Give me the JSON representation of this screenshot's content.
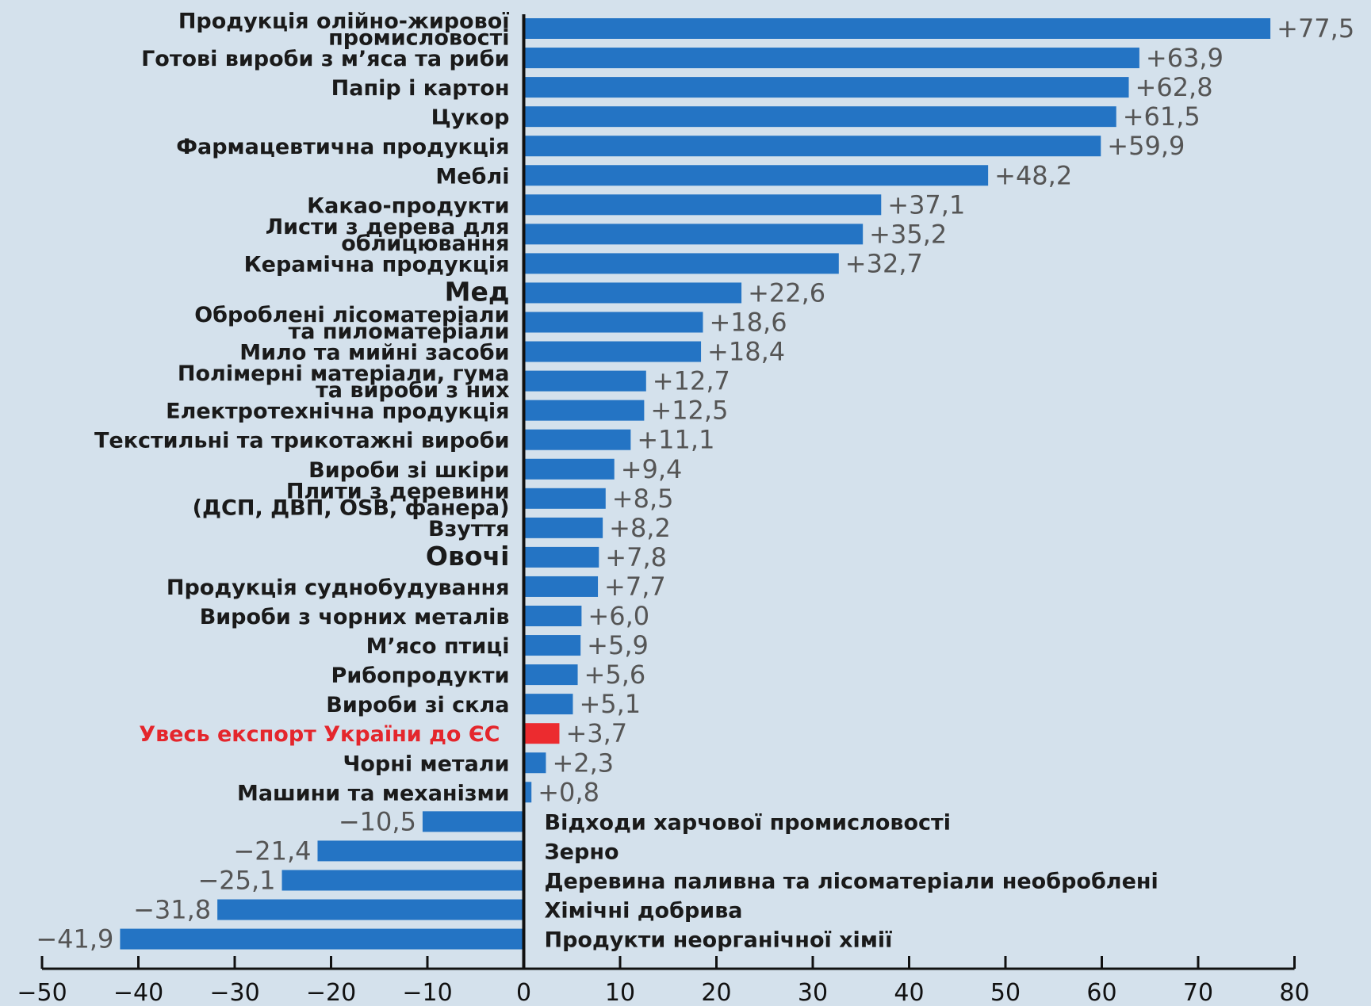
{
  "chart_data": {
    "type": "bar",
    "orientation": "horizontal",
    "title": "",
    "xlabel": "",
    "ylabel": "",
    "xlim": [
      -50,
      80
    ],
    "xticks": [
      "−50",
      "−40",
      "−30",
      "−20",
      "−10",
      "0",
      "10",
      "20",
      "30",
      "40",
      "50",
      "60",
      "70",
      "80"
    ],
    "grid": false,
    "legend": "none",
    "colors": {
      "bar": "#2474c4",
      "highlight": "#ec2b2f",
      "background": "#d4e1ec",
      "axis": "#111111"
    },
    "categories": [
      {
        "lines": [
          "Продукція олійно-жирової",
          "промисловості"
        ],
        "value": 77.5,
        "label": "+77,5"
      },
      {
        "lines": [
          "Готові вироби з м’яса та риби"
        ],
        "value": 63.9,
        "label": "+63,9"
      },
      {
        "lines": [
          "Папір і картон"
        ],
        "value": 62.8,
        "label": "+62,8"
      },
      {
        "lines": [
          "Цукор"
        ],
        "value": 61.5,
        "label": "+61,5"
      },
      {
        "lines": [
          "Фармацевтична продукція"
        ],
        "value": 59.9,
        "label": "+59,9"
      },
      {
        "lines": [
          "Меблі"
        ],
        "value": 48.2,
        "label": "+48,2"
      },
      {
        "lines": [
          "Какао-продукти"
        ],
        "value": 37.1,
        "label": "+37,1"
      },
      {
        "lines": [
          "Листи з дерева для",
          "облицювання"
        ],
        "value": 35.2,
        "label": "+35,2"
      },
      {
        "lines": [
          "Керамічна продукція"
        ],
        "value": 32.7,
        "label": "+32,7"
      },
      {
        "lines": [
          "Мед"
        ],
        "value": 22.6,
        "label": "+22,6",
        "big": true
      },
      {
        "lines": [
          "Оброблені лісоматеріали",
          "та пиломатеріали"
        ],
        "value": 18.6,
        "label": "+18,6"
      },
      {
        "lines": [
          "Мило та мийні засоби"
        ],
        "value": 18.4,
        "label": "+18,4"
      },
      {
        "lines": [
          "Полімерні матеріали, гума",
          "та вироби з них"
        ],
        "value": 12.7,
        "label": "+12,7"
      },
      {
        "lines": [
          "Електротехнічна продукція"
        ],
        "value": 12.5,
        "label": "+12,5"
      },
      {
        "lines": [
          "Текстильні та трикотажні вироби"
        ],
        "value": 11.1,
        "label": "+11,1"
      },
      {
        "lines": [
          "Вироби зі шкіри"
        ],
        "value": 9.4,
        "label": "+9,4"
      },
      {
        "lines": [
          "Плити з деревини",
          "(ДСП, ДВП, OSB, фанера)"
        ],
        "value": 8.5,
        "label": "+8,5"
      },
      {
        "lines": [
          "Взуття"
        ],
        "value": 8.2,
        "label": "+8,2"
      },
      {
        "lines": [
          "Овочі"
        ],
        "value": 7.8,
        "label": "+7,8",
        "big": true
      },
      {
        "lines": [
          "Продукція суднобудування"
        ],
        "value": 7.7,
        "label": "+7,7"
      },
      {
        "lines": [
          "Вироби з чорних металів"
        ],
        "value": 6.0,
        "label": "+6,0"
      },
      {
        "lines": [
          "М’ясо птиці"
        ],
        "value": 5.9,
        "label": "+5,9"
      },
      {
        "lines": [
          "Рибопродукти"
        ],
        "value": 5.6,
        "label": "+5,6"
      },
      {
        "lines": [
          "Вироби зі скла"
        ],
        "value": 5.1,
        "label": "+5,1"
      },
      {
        "lines": [
          "Увесь експорт України до ЄС"
        ],
        "value": 3.7,
        "label": "+3,7",
        "highlight": true
      },
      {
        "lines": [
          "Чорні метали"
        ],
        "value": 2.3,
        "label": "+2,3"
      },
      {
        "lines": [
          "Машини та механізми"
        ],
        "value": 0.8,
        "label": "+0,8"
      },
      {
        "lines": [
          "Відходи харчової промисловості"
        ],
        "value": -10.5,
        "label": "−10,5"
      },
      {
        "lines": [
          "Зерно"
        ],
        "value": -21.4,
        "label": "−21,4"
      },
      {
        "lines": [
          "Деревина паливна та лісоматеріали необроблені"
        ],
        "value": -25.1,
        "label": "−25,1"
      },
      {
        "lines": [
          "Хімічні добрива"
        ],
        "value": -31.8,
        "label": "−31,8"
      },
      {
        "lines": [
          "Продукти неорганічної хімії"
        ],
        "value": -41.9,
        "label": "−41,9"
      }
    ]
  }
}
